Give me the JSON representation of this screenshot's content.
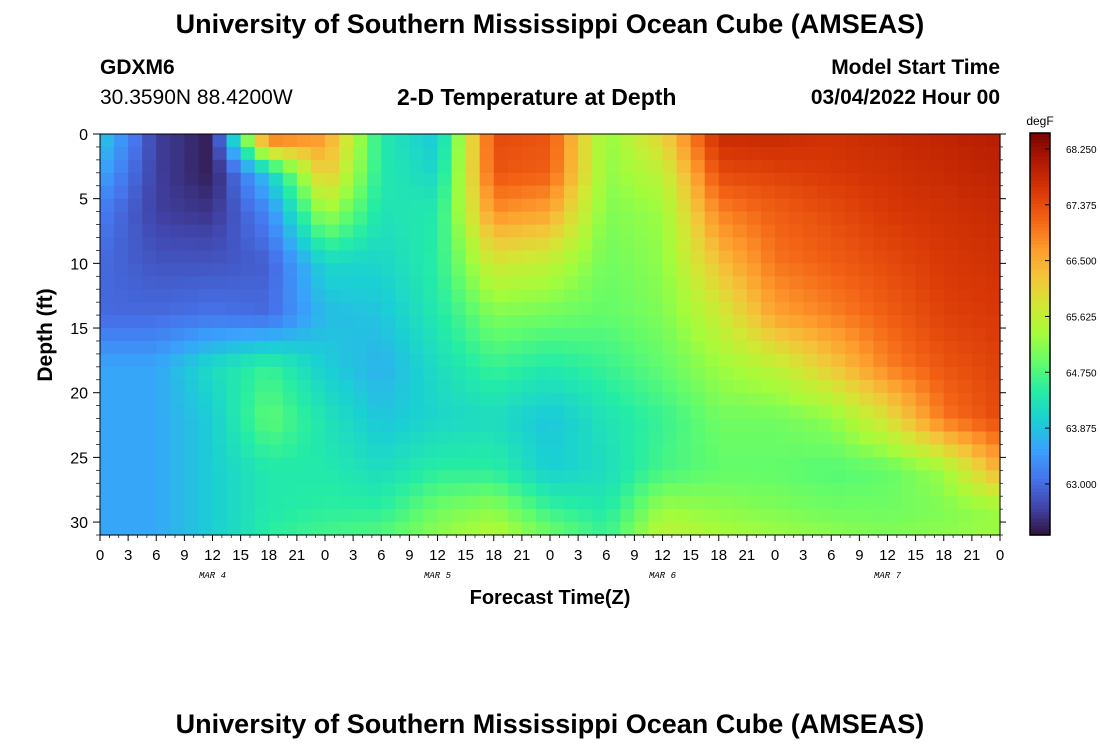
{
  "header": {
    "title": "University of Southern Mississippi Ocean Cube (AMSEAS)",
    "station_id": "GDXM6",
    "station_coords": "30.3590N  88.4200W",
    "plot_title": "2-D Temperature at Depth",
    "model_start_label": "Model Start Time",
    "model_start_value": "03/04/2022 Hour 00"
  },
  "footer": {
    "title": "University of Southern Mississippi Ocean Cube (AMSEAS)"
  },
  "chart_data": {
    "type": "heatmap",
    "xlabel": "Forecast Time(Z)",
    "ylabel": "Depth (ft)",
    "x_tick_labels": [
      "0",
      "3",
      "6",
      "9",
      "12",
      "15",
      "18",
      "21",
      "0",
      "3",
      "6",
      "9",
      "12",
      "15",
      "18",
      "21",
      "0",
      "3",
      "6",
      "9",
      "12",
      "15",
      "18",
      "21",
      "0",
      "3",
      "6",
      "9",
      "12",
      "15",
      "18",
      "21",
      "0"
    ],
    "date_labels": [
      "MAR 4",
      "MAR 5",
      "MAR 6",
      "MAR 7"
    ],
    "y_ticks": [
      0,
      5,
      10,
      15,
      20,
      25,
      30
    ],
    "ylim": [
      0,
      31
    ],
    "y_inverted": true,
    "colorbar": {
      "unit": "degF",
      "tick_labels": [
        "68.250",
        "67.375",
        "66.500",
        "65.625",
        "64.750",
        "63.875",
        "63.000"
      ],
      "tick_values": [
        68.25,
        67.375,
        66.5,
        65.625,
        64.75,
        63.875,
        63.0
      ],
      "range": [
        62.2,
        68.5
      ],
      "colormap": [
        "#30123b",
        "#4145ab",
        "#4675ed",
        "#39a2fc",
        "#1bcfd4",
        "#24eca6",
        "#61fc6c",
        "#a4fc3b",
        "#d1e834",
        "#f3c63a",
        "#fe9b2d",
        "#f36315",
        "#d93806",
        "#b11901",
        "#7a0402"
      ]
    },
    "depth_levels_ft": [
      0,
      3,
      6,
      10,
      14,
      18,
      22,
      26,
      29,
      31
    ],
    "time_hours": [
      0,
      6,
      12,
      18,
      24,
      30,
      36,
      42,
      48,
      54,
      60,
      66,
      72,
      78,
      84,
      90,
      96
    ],
    "values_degF": [
      [
        64.0,
        62.6,
        62.3,
        67.4,
        66.7,
        64.4,
        63.9,
        67.4,
        67.3,
        65.2,
        66.1,
        67.8,
        67.8,
        67.7,
        67.8,
        67.9,
        68.0
      ],
      [
        63.6,
        62.6,
        62.3,
        64.0,
        66.3,
        64.4,
        64.1,
        67.3,
        67.2,
        65.2,
        65.6,
        67.4,
        67.5,
        67.6,
        67.7,
        67.8,
        67.9
      ],
      [
        63.2,
        62.6,
        62.5,
        63.3,
        65.4,
        64.3,
        64.4,
        66.8,
        66.6,
        65.1,
        65.3,
        66.9,
        67.2,
        67.4,
        67.6,
        67.7,
        67.8
      ],
      [
        63.0,
        62.8,
        62.8,
        62.9,
        64.1,
        64.1,
        64.5,
        65.8,
        65.6,
        65.0,
        65.2,
        66.3,
        67.0,
        67.2,
        67.4,
        67.6,
        67.7
      ],
      [
        63.0,
        63.0,
        63.1,
        63.0,
        63.8,
        63.9,
        64.4,
        65.1,
        65.0,
        64.9,
        65.1,
        65.7,
        66.6,
        66.9,
        67.2,
        67.5,
        67.6
      ],
      [
        63.6,
        63.6,
        64.2,
        64.6,
        64.0,
        63.7,
        64.2,
        64.6,
        64.4,
        64.6,
        64.9,
        65.3,
        65.6,
        66.2,
        66.9,
        67.3,
        67.5
      ],
      [
        63.6,
        63.6,
        64.0,
        64.9,
        64.3,
        63.9,
        64.1,
        64.2,
        63.9,
        64.3,
        64.6,
        65.0,
        65.0,
        65.2,
        65.9,
        67.0,
        67.4
      ],
      [
        63.6,
        63.6,
        64.0,
        64.4,
        64.4,
        64.2,
        64.5,
        64.5,
        64.0,
        64.2,
        64.7,
        64.9,
        64.9,
        64.8,
        64.9,
        65.3,
        66.5
      ],
      [
        63.6,
        63.6,
        64.0,
        64.4,
        64.5,
        64.5,
        65.0,
        65.2,
        64.6,
        64.4,
        65.3,
        65.2,
        65.1,
        65.0,
        65.0,
        65.1,
        65.3
      ],
      [
        63.6,
        63.6,
        64.0,
        64.5,
        64.7,
        64.8,
        65.2,
        65.5,
        65.0,
        64.6,
        65.6,
        65.4,
        65.3,
        65.2,
        65.1,
        65.2,
        65.3
      ]
    ]
  }
}
